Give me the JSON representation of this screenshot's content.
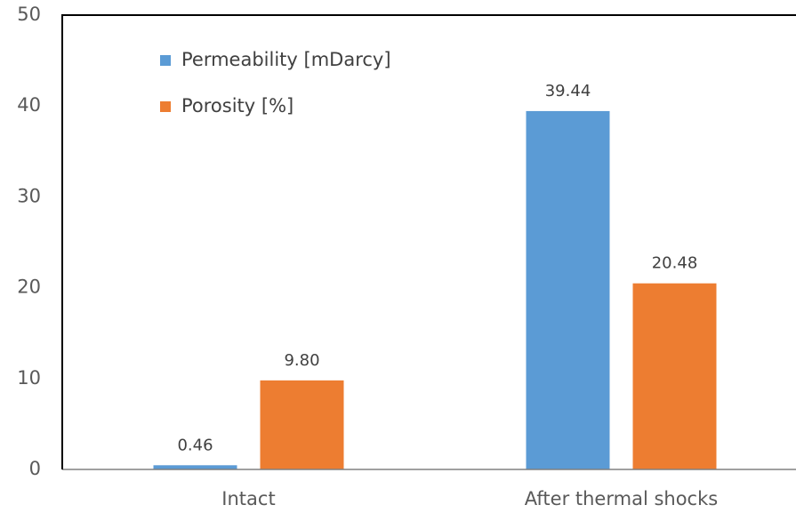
{
  "chart_data": {
    "type": "bar",
    "categories": [
      "Intact",
      "After thermal shocks"
    ],
    "series": [
      {
        "name": "Permeability [mDarcy]",
        "color": "#5b9bd5",
        "values": [
          0.46,
          39.44
        ]
      },
      {
        "name": "Porosity [%]",
        "color": "#ed7d31",
        "values": [
          9.8,
          20.48
        ],
        "value_labels": [
          "9.80",
          "20.48"
        ]
      }
    ],
    "ylim": [
      0,
      50
    ],
    "yticks": [
      0,
      10,
      20,
      30,
      40,
      50
    ],
    "grid": false,
    "legend": "upper left"
  }
}
